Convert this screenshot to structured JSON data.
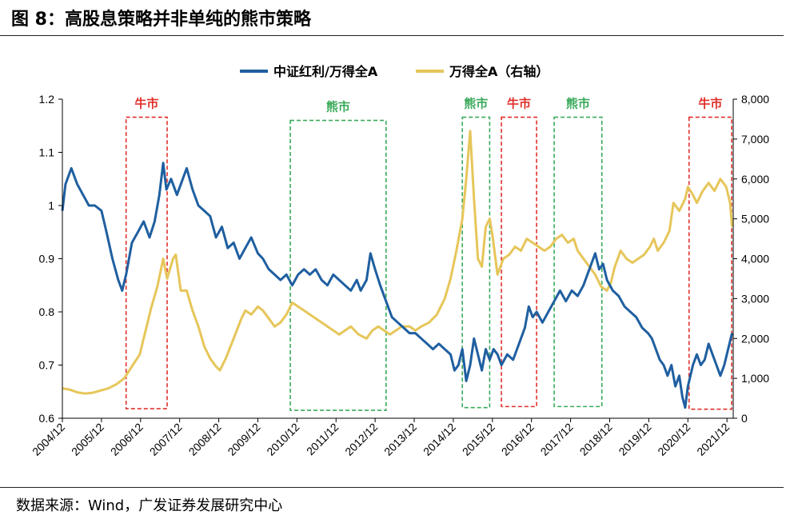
{
  "figure": {
    "title": "图 8：高股息策略并非单纯的熊市策略",
    "source": "数据来源：Wind，广发证券发展研究中心"
  },
  "chart_data": {
    "type": "line",
    "x_tick_labels": [
      "2004/12",
      "2005/12",
      "2006/12",
      "2007/12",
      "2008/12",
      "2009/12",
      "2010/12",
      "2011/12",
      "2012/12",
      "2013/12",
      "2014/12",
      "2015/12",
      "2016/12",
      "2017/12",
      "2018/12",
      "2019/12",
      "2020/12",
      "2021/12"
    ],
    "x_range": [
      2004.92,
      2022.08
    ],
    "y_left": {
      "range": [
        0.6,
        1.2
      ],
      "ticks": [
        0.6,
        0.7,
        0.8,
        0.9,
        1,
        1.1,
        1.2
      ],
      "tick_labels": [
        "0.6",
        "0.7",
        "0.8",
        "0.9",
        "1",
        "1.1",
        "1.2"
      ]
    },
    "y_right": {
      "range": [
        0,
        8000
      ],
      "ticks": [
        0,
        1000,
        2000,
        3000,
        4000,
        5000,
        6000,
        7000,
        8000
      ],
      "tick_labels": [
        "0",
        "1,000",
        "2,000",
        "3,000",
        "4,000",
        "5,000",
        "6,000",
        "7,000",
        "8,000"
      ]
    },
    "legend_position": "top",
    "grid": false,
    "series": [
      {
        "name": "中证红利/万得全A",
        "axis": "left",
        "color": "#1f5fa0",
        "points": [
          [
            2004.92,
            0.99
          ],
          [
            2005.0,
            1.04
          ],
          [
            2005.15,
            1.07
          ],
          [
            2005.3,
            1.04
          ],
          [
            2005.45,
            1.02
          ],
          [
            2005.6,
            1.0
          ],
          [
            2005.75,
            1.0
          ],
          [
            2005.92,
            0.99
          ],
          [
            2006.05,
            0.95
          ],
          [
            2006.2,
            0.9
          ],
          [
            2006.35,
            0.86
          ],
          [
            2006.45,
            0.84
          ],
          [
            2006.55,
            0.87
          ],
          [
            2006.7,
            0.93
          ],
          [
            2006.85,
            0.95
          ],
          [
            2007.0,
            0.97
          ],
          [
            2007.15,
            0.94
          ],
          [
            2007.28,
            0.97
          ],
          [
            2007.4,
            1.02
          ],
          [
            2007.5,
            1.08
          ],
          [
            2007.58,
            1.03
          ],
          [
            2007.7,
            1.05
          ],
          [
            2007.85,
            1.02
          ],
          [
            2008.0,
            1.05
          ],
          [
            2008.1,
            1.07
          ],
          [
            2008.25,
            1.03
          ],
          [
            2008.4,
            1.0
          ],
          [
            2008.55,
            0.99
          ],
          [
            2008.7,
            0.98
          ],
          [
            2008.85,
            0.94
          ],
          [
            2009.0,
            0.96
          ],
          [
            2009.15,
            0.92
          ],
          [
            2009.3,
            0.93
          ],
          [
            2009.45,
            0.9
          ],
          [
            2009.6,
            0.92
          ],
          [
            2009.75,
            0.94
          ],
          [
            2009.92,
            0.91
          ],
          [
            2010.05,
            0.9
          ],
          [
            2010.2,
            0.88
          ],
          [
            2010.35,
            0.87
          ],
          [
            2010.5,
            0.86
          ],
          [
            2010.65,
            0.87
          ],
          [
            2010.8,
            0.85
          ],
          [
            2010.95,
            0.87
          ],
          [
            2011.1,
            0.88
          ],
          [
            2011.25,
            0.87
          ],
          [
            2011.4,
            0.88
          ],
          [
            2011.55,
            0.86
          ],
          [
            2011.7,
            0.85
          ],
          [
            2011.85,
            0.87
          ],
          [
            2012.0,
            0.86
          ],
          [
            2012.15,
            0.85
          ],
          [
            2012.3,
            0.84
          ],
          [
            2012.45,
            0.86
          ],
          [
            2012.55,
            0.84
          ],
          [
            2012.7,
            0.86
          ],
          [
            2012.8,
            0.91
          ],
          [
            2012.92,
            0.88
          ],
          [
            2013.05,
            0.85
          ],
          [
            2013.2,
            0.82
          ],
          [
            2013.35,
            0.79
          ],
          [
            2013.5,
            0.78
          ],
          [
            2013.65,
            0.77
          ],
          [
            2013.8,
            0.76
          ],
          [
            2013.95,
            0.76
          ],
          [
            2014.1,
            0.75
          ],
          [
            2014.25,
            0.74
          ],
          [
            2014.4,
            0.73
          ],
          [
            2014.55,
            0.74
          ],
          [
            2014.7,
            0.73
          ],
          [
            2014.85,
            0.72
          ],
          [
            2014.95,
            0.69
          ],
          [
            2015.05,
            0.7
          ],
          [
            2015.15,
            0.73
          ],
          [
            2015.25,
            0.67
          ],
          [
            2015.35,
            0.7
          ],
          [
            2015.45,
            0.75
          ],
          [
            2015.55,
            0.72
          ],
          [
            2015.65,
            0.69
          ],
          [
            2015.75,
            0.73
          ],
          [
            2015.85,
            0.71
          ],
          [
            2015.95,
            0.73
          ],
          [
            2016.05,
            0.72
          ],
          [
            2016.15,
            0.7
          ],
          [
            2016.3,
            0.72
          ],
          [
            2016.45,
            0.71
          ],
          [
            2016.6,
            0.74
          ],
          [
            2016.75,
            0.77
          ],
          [
            2016.85,
            0.81
          ],
          [
            2016.95,
            0.79
          ],
          [
            2017.05,
            0.8
          ],
          [
            2017.2,
            0.78
          ],
          [
            2017.35,
            0.8
          ],
          [
            2017.5,
            0.82
          ],
          [
            2017.65,
            0.84
          ],
          [
            2017.8,
            0.82
          ],
          [
            2017.95,
            0.84
          ],
          [
            2018.1,
            0.83
          ],
          [
            2018.25,
            0.85
          ],
          [
            2018.35,
            0.87
          ],
          [
            2018.45,
            0.89
          ],
          [
            2018.55,
            0.91
          ],
          [
            2018.65,
            0.88
          ],
          [
            2018.75,
            0.89
          ],
          [
            2018.85,
            0.86
          ],
          [
            2019.0,
            0.84
          ],
          [
            2019.15,
            0.83
          ],
          [
            2019.3,
            0.81
          ],
          [
            2019.45,
            0.8
          ],
          [
            2019.6,
            0.79
          ],
          [
            2019.75,
            0.77
          ],
          [
            2019.9,
            0.76
          ],
          [
            2020.0,
            0.75
          ],
          [
            2020.1,
            0.73
          ],
          [
            2020.2,
            0.71
          ],
          [
            2020.3,
            0.7
          ],
          [
            2020.4,
            0.68
          ],
          [
            2020.5,
            0.7
          ],
          [
            2020.6,
            0.66
          ],
          [
            2020.7,
            0.68
          ],
          [
            2020.78,
            0.64
          ],
          [
            2020.85,
            0.62
          ],
          [
            2020.92,
            0.66
          ],
          [
            2021.05,
            0.7
          ],
          [
            2021.15,
            0.72
          ],
          [
            2021.25,
            0.7
          ],
          [
            2021.35,
            0.71
          ],
          [
            2021.45,
            0.74
          ],
          [
            2021.55,
            0.72
          ],
          [
            2021.65,
            0.7
          ],
          [
            2021.75,
            0.68
          ],
          [
            2021.85,
            0.7
          ],
          [
            2021.95,
            0.73
          ],
          [
            2022.05,
            0.76
          ]
        ]
      },
      {
        "name": "万得全A（右轴）",
        "axis": "right",
        "color": "#e6c65a",
        "points": [
          [
            2004.92,
            750
          ],
          [
            2005.1,
            720
          ],
          [
            2005.3,
            650
          ],
          [
            2005.5,
            620
          ],
          [
            2005.7,
            640
          ],
          [
            2005.92,
            700
          ],
          [
            2006.1,
            750
          ],
          [
            2006.3,
            850
          ],
          [
            2006.5,
            1000
          ],
          [
            2006.7,
            1300
          ],
          [
            2006.9,
            1600
          ],
          [
            2007.05,
            2200
          ],
          [
            2007.2,
            2800
          ],
          [
            2007.35,
            3300
          ],
          [
            2007.5,
            4000
          ],
          [
            2007.6,
            3500
          ],
          [
            2007.75,
            4000
          ],
          [
            2007.82,
            4100
          ],
          [
            2007.95,
            3200
          ],
          [
            2008.1,
            3200
          ],
          [
            2008.25,
            2700
          ],
          [
            2008.4,
            2300
          ],
          [
            2008.55,
            1800
          ],
          [
            2008.7,
            1500
          ],
          [
            2008.85,
            1300
          ],
          [
            2008.95,
            1200
          ],
          [
            2009.1,
            1500
          ],
          [
            2009.3,
            2000
          ],
          [
            2009.5,
            2500
          ],
          [
            2009.6,
            2700
          ],
          [
            2009.75,
            2600
          ],
          [
            2009.92,
            2800
          ],
          [
            2010.05,
            2700
          ],
          [
            2010.2,
            2500
          ],
          [
            2010.35,
            2300
          ],
          [
            2010.5,
            2400
          ],
          [
            2010.65,
            2600
          ],
          [
            2010.8,
            2900
          ],
          [
            2010.95,
            2800
          ],
          [
            2011.1,
            2700
          ],
          [
            2011.25,
            2600
          ],
          [
            2011.4,
            2500
          ],
          [
            2011.55,
            2400
          ],
          [
            2011.7,
            2300
          ],
          [
            2011.85,
            2200
          ],
          [
            2012.0,
            2100
          ],
          [
            2012.15,
            2200
          ],
          [
            2012.3,
            2300
          ],
          [
            2012.5,
            2100
          ],
          [
            2012.7,
            2000
          ],
          [
            2012.85,
            2200
          ],
          [
            2013.0,
            2300
          ],
          [
            2013.15,
            2200
          ],
          [
            2013.3,
            2100
          ],
          [
            2013.45,
            2200
          ],
          [
            2013.6,
            2300
          ],
          [
            2013.8,
            2300
          ],
          [
            2013.95,
            2200
          ],
          [
            2014.1,
            2300
          ],
          [
            2014.3,
            2400
          ],
          [
            2014.5,
            2600
          ],
          [
            2014.7,
            3000
          ],
          [
            2014.85,
            3500
          ],
          [
            2015.0,
            4200
          ],
          [
            2015.15,
            5000
          ],
          [
            2015.25,
            6000
          ],
          [
            2015.35,
            7200
          ],
          [
            2015.45,
            5500
          ],
          [
            2015.55,
            4000
          ],
          [
            2015.65,
            3800
          ],
          [
            2015.75,
            4800
          ],
          [
            2015.85,
            5000
          ],
          [
            2015.92,
            4600
          ],
          [
            2016.05,
            3600
          ],
          [
            2016.2,
            4000
          ],
          [
            2016.35,
            4100
          ],
          [
            2016.5,
            4300
          ],
          [
            2016.65,
            4200
          ],
          [
            2016.8,
            4500
          ],
          [
            2016.95,
            4400
          ],
          [
            2017.1,
            4300
          ],
          [
            2017.25,
            4200
          ],
          [
            2017.4,
            4300
          ],
          [
            2017.55,
            4500
          ],
          [
            2017.7,
            4600
          ],
          [
            2017.85,
            4400
          ],
          [
            2018.0,
            4500
          ],
          [
            2018.1,
            4200
          ],
          [
            2018.25,
            4000
          ],
          [
            2018.4,
            3800
          ],
          [
            2018.55,
            3600
          ],
          [
            2018.7,
            3300
          ],
          [
            2018.85,
            3200
          ],
          [
            2018.95,
            3400
          ],
          [
            2019.05,
            3800
          ],
          [
            2019.2,
            4200
          ],
          [
            2019.35,
            4000
          ],
          [
            2019.5,
            3900
          ],
          [
            2019.65,
            4000
          ],
          [
            2019.8,
            4100
          ],
          [
            2019.95,
            4300
          ],
          [
            2020.05,
            4500
          ],
          [
            2020.15,
            4200
          ],
          [
            2020.3,
            4400
          ],
          [
            2020.45,
            4700
          ],
          [
            2020.55,
            5400
          ],
          [
            2020.7,
            5200
          ],
          [
            2020.85,
            5500
          ],
          [
            2020.92,
            5800
          ],
          [
            2021.05,
            5600
          ],
          [
            2021.15,
            5400
          ],
          [
            2021.3,
            5700
          ],
          [
            2021.45,
            5900
          ],
          [
            2021.6,
            5700
          ],
          [
            2021.75,
            6000
          ],
          [
            2021.9,
            5800
          ],
          [
            2022.0,
            5400
          ],
          [
            2022.05,
            4800
          ]
        ]
      }
    ],
    "regimes": [
      {
        "label": "牛市",
        "color": "#e0302a",
        "x_range": [
          2006.55,
          2007.6
        ],
        "y_range": [
          0.618,
          1.166
        ]
      },
      {
        "label": "熊市",
        "color": "#3aaa5a",
        "x_range": [
          2010.75,
          2013.2
        ],
        "y_range": [
          0.615,
          1.16
        ]
      },
      {
        "label": "熊市",
        "color": "#3aaa5a",
        "x_range": [
          2015.15,
          2015.85
        ],
        "y_range": [
          0.62,
          1.166
        ]
      },
      {
        "label": "牛市",
        "color": "#e0302a",
        "x_range": [
          2016.15,
          2017.05
        ],
        "y_range": [
          0.622,
          1.166
        ]
      },
      {
        "label": "熊市",
        "color": "#3aaa5a",
        "x_range": [
          2017.5,
          2018.72
        ],
        "y_range": [
          0.622,
          1.166
        ]
      },
      {
        "label": "牛市",
        "color": "#e0302a",
        "x_range": [
          2020.95,
          2022.04
        ],
        "y_range": [
          0.617,
          1.166
        ]
      }
    ]
  }
}
